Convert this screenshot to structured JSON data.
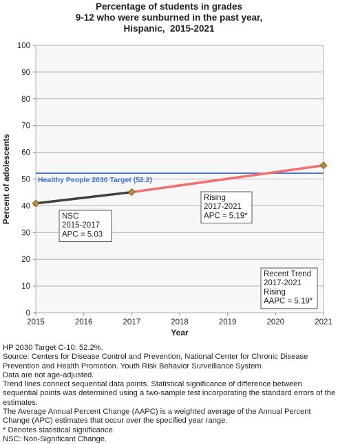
{
  "chart_data": {
    "type": "line",
    "title_lines": [
      "Percentage of students in grades",
      "9-12 who were sunburned in the past year,",
      "Hispanic,  2015-2021"
    ],
    "xlabel": "Year",
    "ylabel": "Percent of adolescents",
    "xlim": [
      2015,
      2021
    ],
    "ylim": [
      0,
      100
    ],
    "x_ticks": [
      2015,
      2016,
      2017,
      2018,
      2019,
      2020,
      2021
    ],
    "y_ticks": [
      0,
      10,
      20,
      30,
      40,
      50,
      60,
      70,
      80,
      90,
      100
    ],
    "grid": "horizontal",
    "points": [
      {
        "x": 2015,
        "y": 40.9
      },
      {
        "x": 2017,
        "y": 45.1
      },
      {
        "x": 2021,
        "y": 55.1
      }
    ],
    "segments": [
      {
        "x": [
          2015,
          2017
        ],
        "y": [
          40.9,
          45.1
        ],
        "color": "#3f3f3f"
      },
      {
        "x": [
          2017,
          2021
        ],
        "y": [
          45.1,
          55.1
        ],
        "color": "#f07070"
      }
    ],
    "target": {
      "label": "Healthy People 2030 Target (52.2)",
      "value": 52.2,
      "color": "#4a74e0"
    },
    "marker_color": "#b8893a",
    "annotations": [
      {
        "lines": [
          "NSC",
          "2015-2017",
          "APC =  5.03"
        ]
      },
      {
        "lines": [
          "Rising",
          "2017-2021",
          "APC =  5.19*"
        ]
      },
      {
        "lines": [
          "Recent Trend",
          "2017-2021",
          "Rising",
          "AAPC =  5.19*"
        ]
      }
    ]
  },
  "notes": [
    "HP 2030 Target C-10: 52.2%.",
    "Source: Centers for Disease Control and Prevention, National Center for Chronic Disease Prevention and Health Promotion. Youth Risk Behavior Surveillance System.",
    "Data are not age-adjusted.",
    "Trend lines connect sequential data points. Statistical significance of difference between sequential points was determined using a two-sample test incorporating the standard errors of the estimates.",
    "The Average Annual Percent Change (AAPC) is a weighted average of the Annual Percent Change (APC) estimates that occur over the specified year range.",
    "* Denotes statistical significance.",
    "NSC: Non-Significant Change."
  ]
}
